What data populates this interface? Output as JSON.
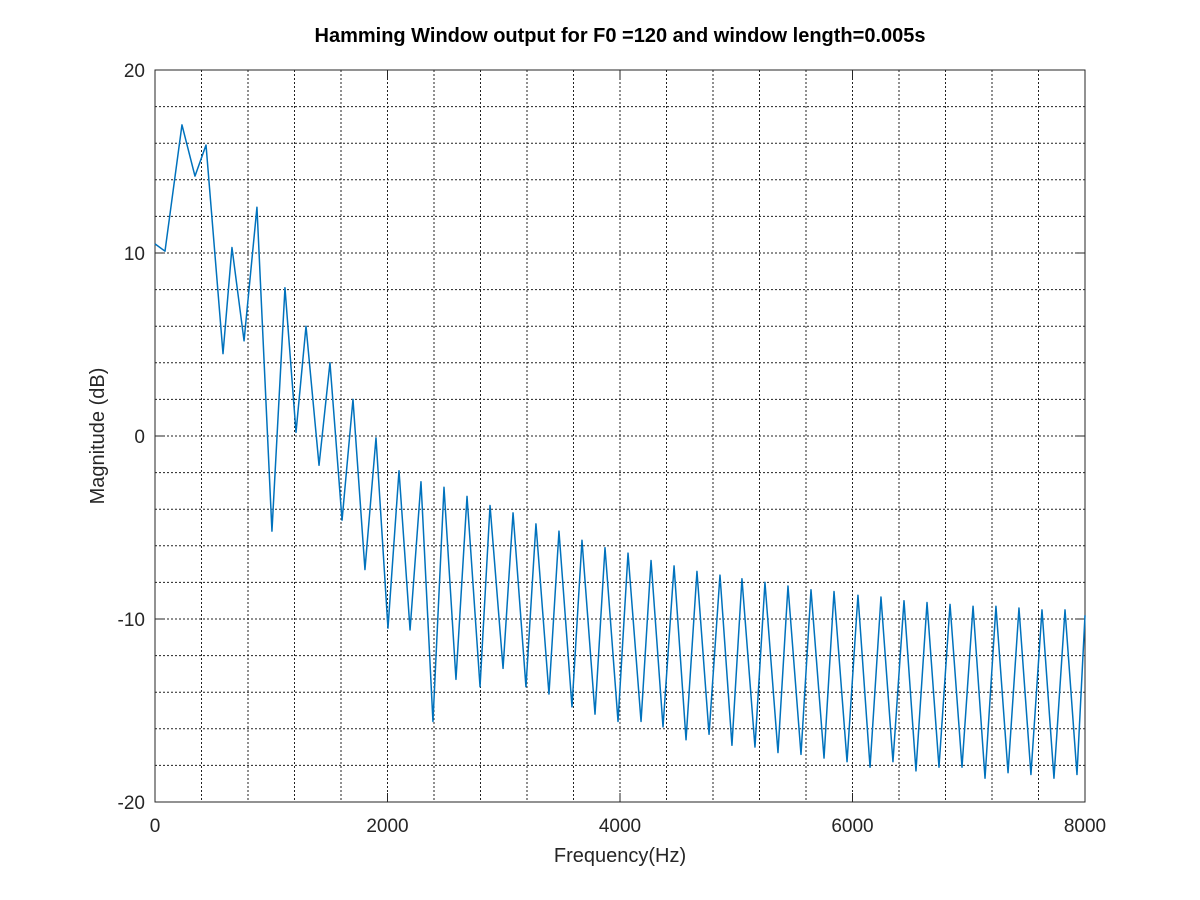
{
  "chart_data": {
    "type": "line",
    "title": "Hamming Window output for F0 =120 and window length=0.005s",
    "x_label": "Frequency(Hz)",
    "y_label": "Magnitude (dB)",
    "xlim": [
      0,
      8000
    ],
    "ylim": [
      -20,
      20
    ],
    "xticks": [
      0,
      2000,
      4000,
      6000,
      8000
    ],
    "yticks": [
      -20,
      -10,
      0,
      10,
      20
    ],
    "grid": true,
    "x_minor_grid": [
      400,
      800,
      1200,
      1600,
      2400,
      2800,
      3200,
      3600,
      4400,
      4800,
      5200,
      5600,
      6400,
      6800,
      7200,
      7600
    ],
    "y_minor_grid": [
      -18,
      -16,
      -14,
      -12,
      -8,
      -6,
      -4,
      -2,
      2,
      4,
      6,
      8,
      12,
      14,
      16,
      18
    ],
    "x": [
      0,
      86,
      232,
      344,
      439,
      585,
      662,
      766,
      877,
      1006,
      1118,
      1213,
      1299,
      1411,
      1505,
      1609,
      1703,
      1806,
      1901,
      2004,
      2099,
      2194,
      2288,
      2391,
      2486,
      2589,
      2684,
      2796,
      2882,
      2994,
      3080,
      3191,
      3277,
      3389,
      3475,
      3587,
      3673,
      3785,
      3871,
      3983,
      4069,
      4181,
      4267,
      4370,
      4465,
      4568,
      4662,
      4766,
      4860,
      4963,
      5049,
      5161,
      5247,
      5359,
      5445,
      5557,
      5643,
      5755,
      5841,
      5953,
      6047,
      6151,
      6245,
      6348,
      6443,
      6546,
      6641,
      6744,
      6839,
      6942,
      7037,
      7140,
      7234,
      7338,
      7432,
      7535,
      7630,
      7733,
      7828,
      7931,
      8000
    ],
    "series": [
      {
        "color": "#0072bd",
        "values": [
          10.5,
          10.1,
          17.0,
          14.2,
          15.9,
          4.5,
          10.3,
          5.2,
          12.5,
          -5.2,
          8.1,
          0.2,
          6.0,
          -1.6,
          4.0,
          -4.6,
          2.0,
          -7.3,
          -0.1,
          -10.5,
          -1.9,
          -10.6,
          -2.5,
          -15.6,
          -2.8,
          -13.3,
          -3.3,
          -13.7,
          -3.8,
          -12.7,
          -4.2,
          -13.7,
          -4.8,
          -14.1,
          -5.2,
          -14.8,
          -5.7,
          -15.2,
          -6.1,
          -15.6,
          -6.4,
          -15.6,
          -6.8,
          -15.9,
          -7.1,
          -16.6,
          -7.4,
          -16.3,
          -7.6,
          -16.9,
          -7.8,
          -17.0,
          -8.0,
          -17.3,
          -8.2,
          -17.4,
          -8.4,
          -17.6,
          -8.5,
          -17.8,
          -8.7,
          -18.1,
          -8.8,
          -17.8,
          -9.0,
          -18.3,
          -9.1,
          -18.1,
          -9.2,
          -18.1,
          -9.3,
          -18.7,
          -9.3,
          -18.4,
          -9.4,
          -18.5,
          -9.5,
          -18.7,
          -9.5,
          -18.5,
          -9.8
        ]
      }
    ]
  }
}
